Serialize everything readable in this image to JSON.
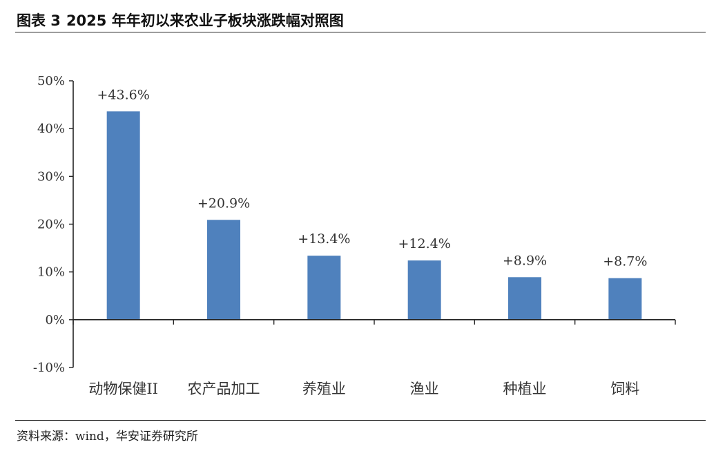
{
  "figure": {
    "label": "图表 3",
    "title": "2025 年年初以来农业子板块涨跌幅对照图",
    "source": "资料来源：wind，华安证券研究所"
  },
  "colors": {
    "bar": "#4F81BD",
    "axis": "#222222",
    "text": "#333333"
  },
  "chart_data": {
    "type": "bar",
    "title": "2025 年年初以来农业子板块涨跌幅对照图",
    "xlabel": "",
    "ylabel": "",
    "categories": [
      "动物保健II",
      "农产品加工",
      "养殖业",
      "渔业",
      "种植业",
      "饲料"
    ],
    "values": [
      43.6,
      20.9,
      13.4,
      12.4,
      8.9,
      8.7
    ],
    "data_labels": [
      "+43.6%",
      "+20.9%",
      "+13.4%",
      "+12.4%",
      "+8.9%",
      "+8.7%"
    ],
    "ylim": [
      -10,
      50
    ],
    "yticks": [
      -10,
      0,
      10,
      20,
      30,
      40,
      50
    ],
    "ytick_labels": [
      "-10%",
      "0%",
      "10%",
      "20%",
      "30%",
      "40%",
      "50%"
    ],
    "grid": false,
    "legend": "none"
  }
}
